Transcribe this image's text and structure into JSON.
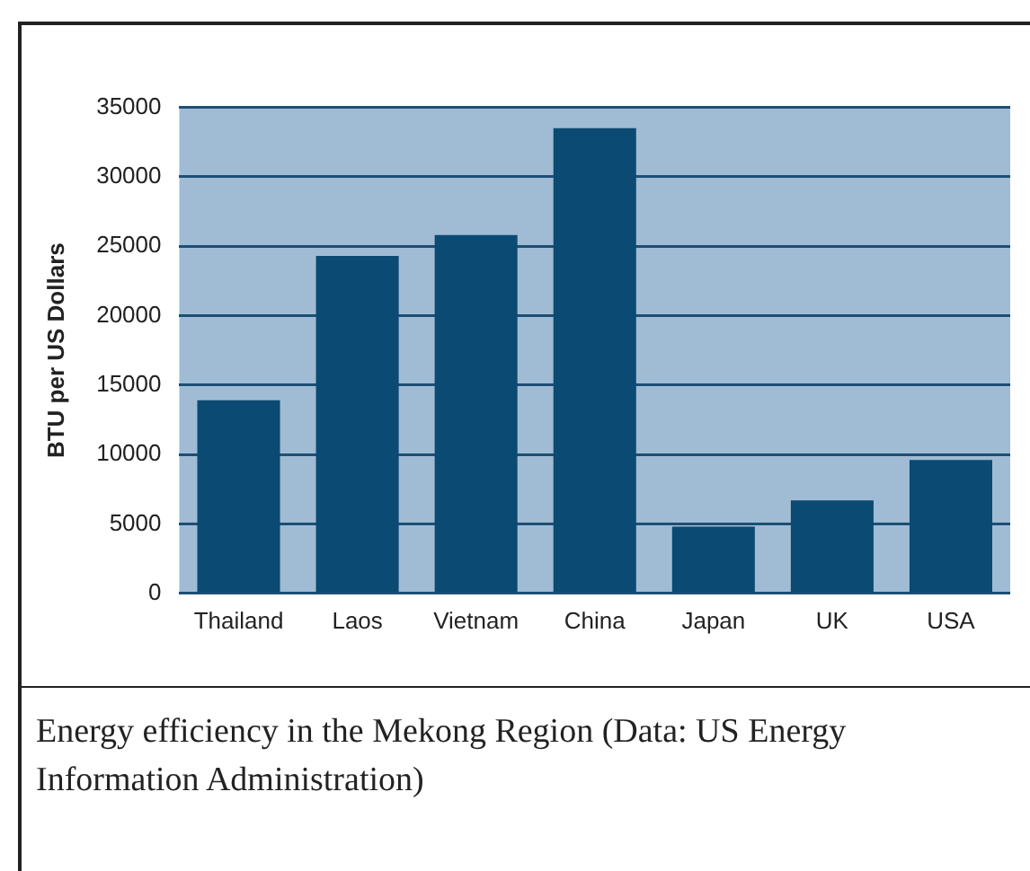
{
  "chart_data": {
    "type": "bar",
    "ylabel": "BTU per US Dollars",
    "categories": [
      "Thailand",
      "Laos",
      "Vietnam",
      "China",
      "Japan",
      "UK",
      "USA"
    ],
    "values": [
      13900,
      24300,
      25800,
      33500,
      4800,
      6700,
      9600
    ],
    "color": "#0b4a72",
    "ylim": [
      0,
      35000
    ],
    "yticks": [
      0,
      5000,
      10000,
      15000,
      20000,
      25000,
      30000,
      35000
    ],
    "grid": "y",
    "annotations": [
      "Energy efficiency in the Mekong Region (Data: US Energy Information Administration)"
    ]
  }
}
